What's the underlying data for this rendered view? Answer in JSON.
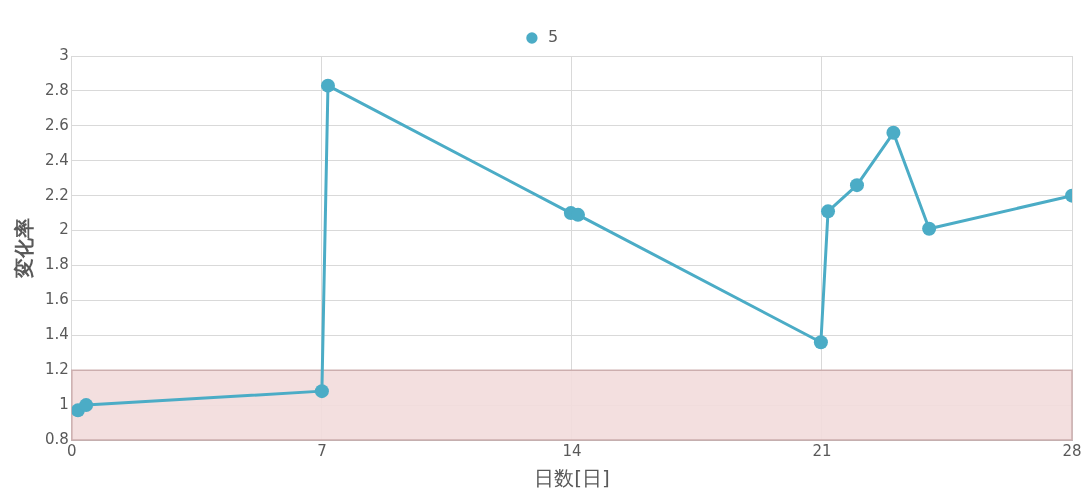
{
  "chart_data": {
    "type": "line",
    "xlabel": "日数[日]",
    "ylabel": "変化率",
    "series": [
      {
        "name": "5",
        "color": "#4bacc6",
        "x": [
          0.17,
          0.4,
          7.0,
          7.17,
          13.97,
          14.17,
          20.97,
          21.17,
          21.98,
          23.0,
          24.0,
          28.0
        ],
        "values": [
          0.97,
          1.0,
          1.08,
          2.83,
          2.1,
          2.09,
          1.36,
          2.11,
          2.26,
          2.56,
          2.01,
          2.2
        ]
      }
    ],
    "xlim": [
      0,
      28
    ],
    "xticks": [
      0,
      7,
      14,
      21,
      28
    ],
    "ylim": [
      0.8,
      3
    ],
    "yticks": [
      0.8,
      1,
      1.2,
      1.4,
      1.6,
      1.8,
      2,
      2.2,
      2.4,
      2.6,
      2.8,
      3
    ],
    "bands": [
      {
        "axis": "y",
        "from": 0.8,
        "to": 1.2,
        "color": "#f2dcdb"
      }
    ],
    "grid": true,
    "legend": "top",
    "marker": "circle",
    "line_style": "solid"
  }
}
